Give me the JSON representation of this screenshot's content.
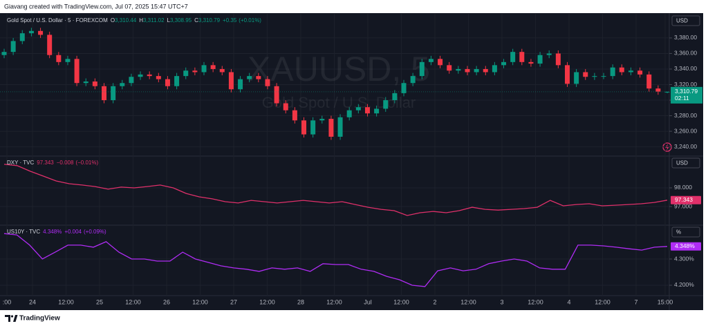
{
  "header": {
    "text": "Giavang created with TradingView.com, Jul 07, 2025 15:47 UTC+7"
  },
  "footer": {
    "brand": "TradingView"
  },
  "time_axis": {
    "labels": [
      ":00",
      "24",
      "12:00",
      "25",
      "12:00",
      "26",
      "12:00",
      "27",
      "12:00",
      "28",
      "12:00",
      "Jul",
      "12:00",
      "2",
      "12:00",
      "3",
      "12:00",
      "4",
      "12:00",
      "7",
      "15:00"
    ]
  },
  "chart_data": [
    {
      "type": "candlestick",
      "title": "Gold Spot / U.S. Dollar · 5 · FOREXCOM",
      "watermark": "XAUUSD, 5",
      "watermark_subtitle": "Gold Spot / U.S. Dollar",
      "currency": "USD",
      "ohlc": [
        {
          "key": "O",
          "value": 3310.44,
          "label": "3,310.44"
        },
        {
          "key": "H",
          "value": 3311.02,
          "label": "3,311.02"
        },
        {
          "key": "L",
          "value": 3308.95,
          "label": "3,308.95"
        },
        {
          "key": "C",
          "value": 3310.79,
          "label": "3,310.79"
        }
      ],
      "change": {
        "value": 0.35,
        "label": "+0.35"
      },
      "change_pct": {
        "value": 0.01,
        "label": "(+0.01%)"
      },
      "last_price": {
        "value": 3310.79,
        "label": "3,310.79"
      },
      "countdown": "02:11",
      "up_color": "#089981",
      "down_color": "#f23645",
      "open": [
        3358,
        3362,
        3376,
        3386,
        3389,
        3384,
        3358,
        3349,
        3353,
        3322,
        3324,
        3318,
        3300,
        3318,
        3322,
        3330,
        3333,
        3331,
        3327,
        3318,
        3331,
        3338,
        3336,
        3345,
        3340,
        3336,
        3314,
        3327,
        3331,
        3327,
        3318,
        3296,
        3287,
        3274,
        3256,
        3274,
        3276,
        3253,
        3278,
        3287,
        3291,
        3283,
        3289,
        3300,
        3309,
        3322,
        3331,
        3349,
        3353,
        3345,
        3338,
        3340,
        3336,
        3340,
        3336,
        3345,
        3349,
        3362,
        3349,
        3347,
        3358,
        3360,
        3345,
        3321,
        3336,
        3330,
        3331,
        3331,
        3342,
        3336,
        3338,
        3333,
        3315,
        3310.44
      ],
      "high": [
        3366,
        3380,
        3390,
        3393,
        3393,
        3388,
        3362,
        3357,
        3357,
        3328,
        3328,
        3322,
        3322,
        3326,
        3334,
        3337,
        3337,
        3335,
        3331,
        3335,
        3342,
        3342,
        3349,
        3349,
        3344,
        3340,
        3331,
        3335,
        3335,
        3331,
        3322,
        3300,
        3291,
        3278,
        3278,
        3280,
        3280,
        3282,
        3291,
        3295,
        3295,
        3293,
        3304,
        3313,
        3326,
        3335,
        3353,
        3357,
        3357,
        3349,
        3344,
        3344,
        3344,
        3344,
        3349,
        3353,
        3366,
        3366,
        3353,
        3362,
        3364,
        3364,
        3349,
        3340,
        3340,
        3335,
        3335,
        3346,
        3346,
        3342,
        3342,
        3337,
        3319,
        3311.02
      ],
      "low": [
        3354,
        3358,
        3372,
        3382,
        3380,
        3354,
        3345,
        3345,
        3318,
        3318,
        3314,
        3296,
        3296,
        3314,
        3318,
        3326,
        3327,
        3323,
        3314,
        3314,
        3327,
        3332,
        3332,
        3336,
        3332,
        3310,
        3310,
        3323,
        3323,
        3314,
        3292,
        3283,
        3270,
        3252,
        3252,
        3270,
        3249,
        3249,
        3274,
        3283,
        3279,
        3279,
        3285,
        3296,
        3305,
        3318,
        3327,
        3345,
        3341,
        3334,
        3334,
        3332,
        3332,
        3332,
        3332,
        3341,
        3345,
        3345,
        3343,
        3343,
        3354,
        3341,
        3317,
        3317,
        3326,
        3326,
        3327,
        3327,
        3332,
        3332,
        3329,
        3311,
        3307,
        3308.95
      ],
      "close": [
        3362,
        3376,
        3386,
        3389,
        3384,
        3358,
        3349,
        3353,
        3322,
        3324,
        3318,
        3300,
        3318,
        3322,
        3330,
        3333,
        3331,
        3327,
        3318,
        3331,
        3338,
        3336,
        3345,
        3340,
        3336,
        3314,
        3327,
        3331,
        3327,
        3318,
        3296,
        3287,
        3274,
        3256,
        3274,
        3276,
        3253,
        3278,
        3287,
        3291,
        3283,
        3289,
        3300,
        3309,
        3322,
        3331,
        3349,
        3353,
        3345,
        3338,
        3340,
        3336,
        3340,
        3336,
        3345,
        3349,
        3362,
        3349,
        3347,
        3358,
        3360,
        3345,
        3321,
        3336,
        3330,
        3331,
        3331,
        3342,
        3336,
        3338,
        3333,
        3315,
        3311,
        3310.79
      ],
      "ylim": [
        3229,
        3411
      ],
      "yticks": [
        {
          "value": 3240,
          "label": "3,240.00"
        },
        {
          "value": 3260,
          "label": "3,260.00"
        },
        {
          "value": 3280,
          "label": "3,280.00"
        },
        {
          "value": 3300,
          "label": "3,300.00"
        },
        {
          "value": 3320,
          "label": "3,320.00"
        },
        {
          "value": 3340,
          "label": "3,340.00"
        },
        {
          "value": 3360,
          "label": "3,360.00"
        },
        {
          "value": 3380,
          "label": "3,380.00"
        }
      ],
      "grid": true
    },
    {
      "type": "line",
      "title": "DXY · TVC",
      "currency": "USD",
      "color": "#e0306a",
      "last_price": {
        "value": 97.343,
        "label": "97.343"
      },
      "change": {
        "value": -0.008,
        "label": "−0.008"
      },
      "change_pct": {
        "value": -0.01,
        "label": "(−0.01%)"
      },
      "values": [
        99.26,
        99.19,
        98.89,
        98.63,
        98.37,
        98.22,
        98.15,
        98.07,
        97.93,
        98.04,
        98.0,
        98.07,
        98.15,
        98.0,
        97.7,
        97.52,
        97.41,
        97.26,
        97.19,
        97.33,
        97.26,
        97.19,
        97.26,
        97.33,
        97.26,
        97.19,
        97.26,
        97.11,
        96.96,
        96.85,
        96.78,
        96.52,
        96.67,
        96.74,
        96.67,
        96.78,
        96.96,
        96.85,
        96.81,
        96.85,
        96.89,
        96.96,
        97.33,
        97.04,
        97.11,
        97.15,
        97.04,
        97.07,
        97.11,
        97.15,
        97.22,
        97.343
      ],
      "ylim": [
        96.04,
        99.7
      ],
      "yticks": [
        {
          "value": 97,
          "label": "97.000"
        },
        {
          "value": 98,
          "label": "98.000"
        }
      ],
      "grid": true
    },
    {
      "type": "line",
      "title": "US10Y · TVC",
      "currency": "%",
      "color": "#b02cf5",
      "last_price": {
        "value": 4.348,
        "label": "4.348%"
      },
      "change": {
        "value": 0.004,
        "label": "+0.004"
      },
      "change_pct": {
        "value": 0.09,
        "label": "(+0.09%)"
      },
      "values": [
        4.397,
        4.392,
        4.353,
        4.3,
        4.326,
        4.353,
        4.353,
        4.345,
        4.366,
        4.326,
        4.3,
        4.3,
        4.292,
        4.292,
        4.326,
        4.3,
        4.287,
        4.274,
        4.266,
        4.261,
        4.253,
        4.266,
        4.261,
        4.266,
        4.253,
        4.282,
        4.279,
        4.279,
        4.261,
        4.253,
        4.234,
        4.221,
        4.2,
        4.195,
        4.255,
        4.266,
        4.255,
        4.261,
        4.282,
        4.292,
        4.3,
        4.292,
        4.266,
        4.261,
        4.261,
        4.353,
        4.353,
        4.35,
        4.345,
        4.339,
        4.334,
        4.345,
        4.348
      ],
      "ylim": [
        4.1605,
        4.429
      ],
      "yticks": [
        {
          "value": 4.2,
          "label": "4.200%"
        },
        {
          "value": 4.3,
          "label": "4.300%"
        }
      ],
      "grid": true
    }
  ]
}
